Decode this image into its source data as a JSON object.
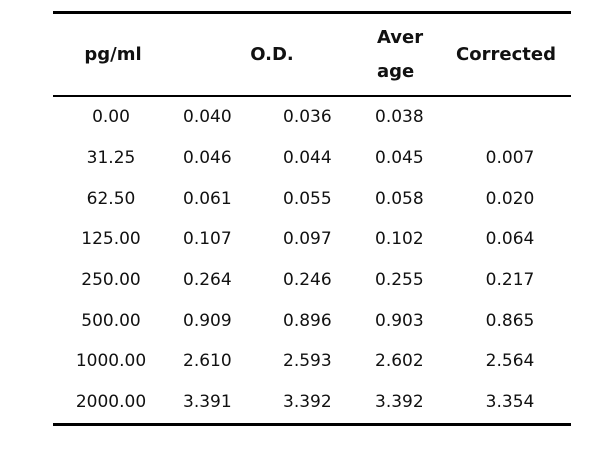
{
  "table": {
    "headers": {
      "pg": "pg/ml",
      "od": "O.D.",
      "avg_line1": "Aver",
      "avg_line2": "age",
      "corrected": "Corrected"
    },
    "rows": [
      {
        "pg": "0.00",
        "od1": "0.040",
        "od2": "0.036",
        "avg": "0.038",
        "corr": ""
      },
      {
        "pg": "31.25",
        "od1": "0.046",
        "od2": "0.044",
        "avg": "0.045",
        "corr": "0.007"
      },
      {
        "pg": "62.50",
        "od1": "0.061",
        "od2": "0.055",
        "avg": "0.058",
        "corr": "0.020"
      },
      {
        "pg": "125.00",
        "od1": "0.107",
        "od2": "0.097",
        "avg": "0.102",
        "corr": "0.064"
      },
      {
        "pg": "250.00",
        "od1": "0.264",
        "od2": "0.246",
        "avg": "0.255",
        "corr": "0.217"
      },
      {
        "pg": "500.00",
        "od1": "0.909",
        "od2": "0.896",
        "avg": "0.903",
        "corr": "0.865"
      },
      {
        "pg": "1000.00",
        "od1": "2.610",
        "od2": "2.593",
        "avg": "2.602",
        "corr": "2.564"
      },
      {
        "pg": "2000.00",
        "od1": "3.391",
        "od2": "3.392",
        "avg": "3.392",
        "corr": "3.354"
      }
    ]
  }
}
